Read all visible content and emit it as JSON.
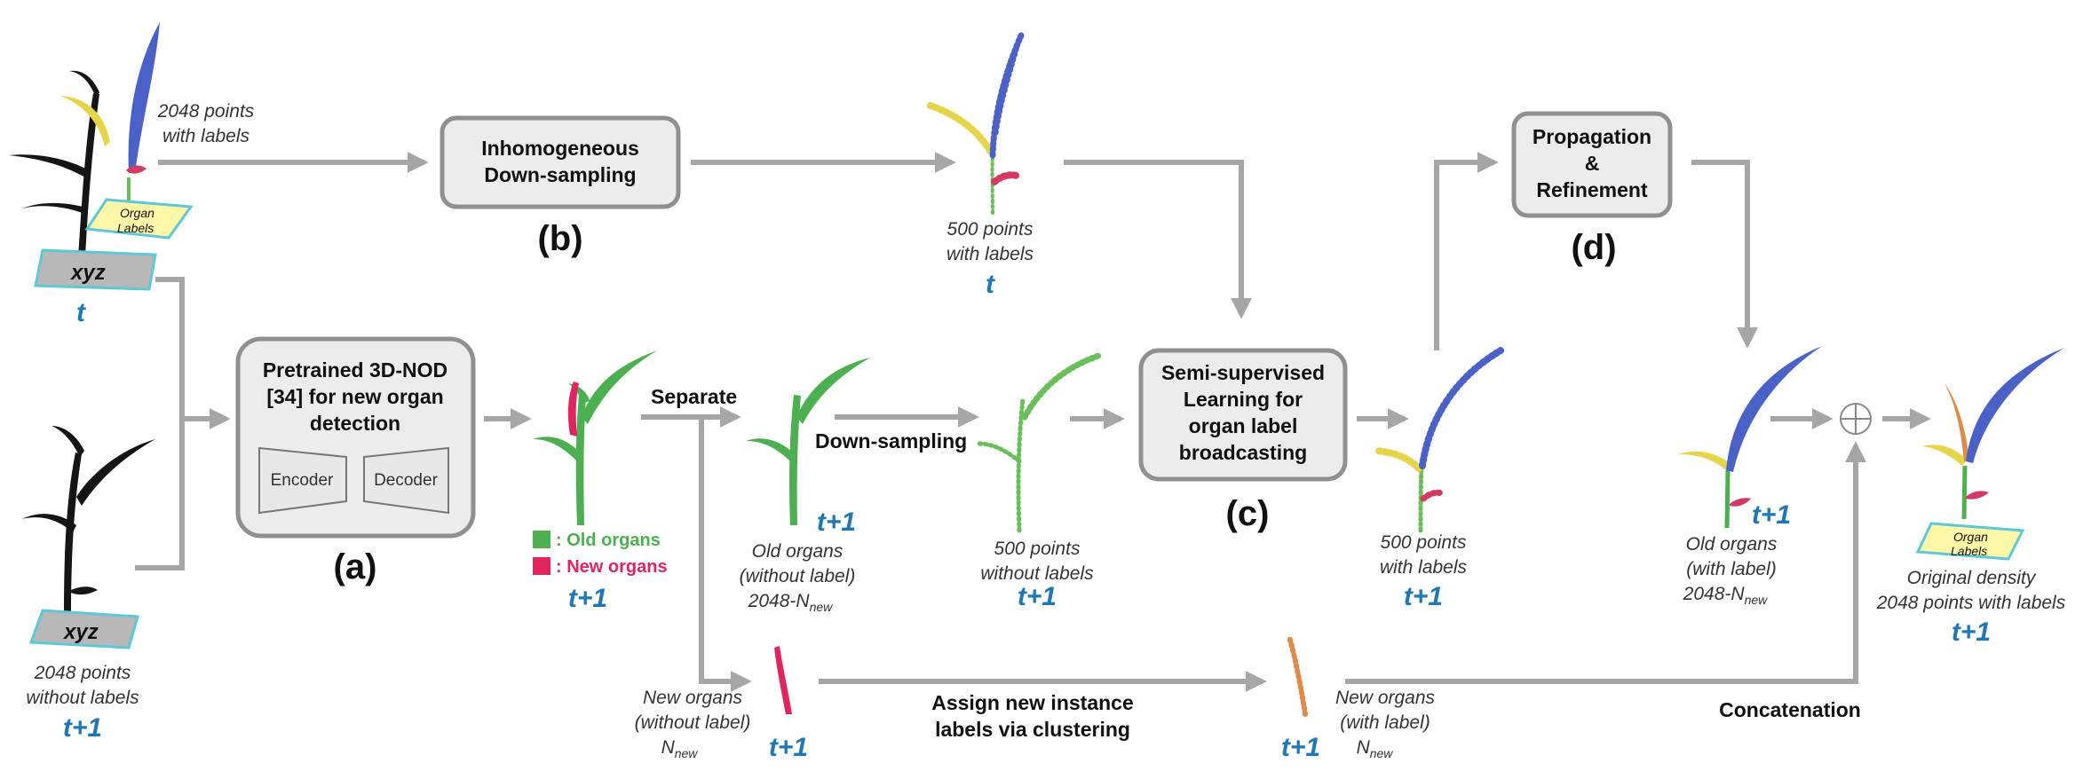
{
  "boxes": {
    "a_line1": "Pretrained 3D-NOD",
    "a_line2": "[34] for new organ",
    "a_line3": "detection",
    "a_encoder": "Encoder",
    "a_decoder": "Decoder",
    "b_line1": "Inhomogeneous",
    "b_line2": "Down-sampling",
    "c_line1": "Semi-supervised",
    "c_line2": "Learning for",
    "c_line3": "organ label",
    "c_line4": "broadcasting",
    "d_line1": "Propagation",
    "d_line2": "&",
    "d_line3": "Refinement"
  },
  "step_labels": {
    "a": "(a)",
    "b": "(b)",
    "c": "(c)",
    "d": "(d)"
  },
  "ops": {
    "separate": "Separate",
    "downsampling": "Down-sampling",
    "assign_line1": "Assign new instance",
    "assign_line2": "labels via clustering",
    "concatenation": "Concatenation",
    "plus": "⊕"
  },
  "captions": {
    "input_top_line1": "2048 points",
    "input_top_line2": "with labels",
    "input_bottom_line1": "2048 points",
    "input_bottom_line2": "without labels",
    "ds500_top_line1": "500 points",
    "ds500_top_line2": "with labels",
    "old_organs_line1": "Old organs",
    "old_organs_line2": "(without label)",
    "old_organs_line3": "2048-N",
    "new_sub": "new",
    "ds500_nolabel_line1": "500 points",
    "ds500_nolabel_line2": "without labels",
    "ssl_out_line1": "500 points",
    "ssl_out_line2": "with labels",
    "old_labeled_line1": "Old organs",
    "old_labeled_line2": "(with label)",
    "old_labeled_line3": "2048-N",
    "final_line1": "Original density",
    "final_line2": "2048 points with labels",
    "new_nolabel_line1": "New organs",
    "new_nolabel_line2": "(without label)",
    "new_nolabel_line3": "N",
    "new_labeled_line1": "New organs",
    "new_labeled_line2": "(with label)",
    "new_labeled_line3": "N"
  },
  "legend": {
    "old": ": Old organs",
    "new": ": New organs"
  },
  "plates": {
    "xyz": "xyz",
    "organ_line1": "Organ",
    "organ_line2": "Labels"
  },
  "time_labels": {
    "t": "t",
    "t1": "t+1"
  },
  "colors": {
    "old": "#4caf50",
    "new": "#e0245e",
    "blue": "#4a62c8",
    "yellow": "#e6d44a",
    "orange": "#e08a4a",
    "time": "#1f77b4",
    "arrow": "#a6a6a6"
  }
}
